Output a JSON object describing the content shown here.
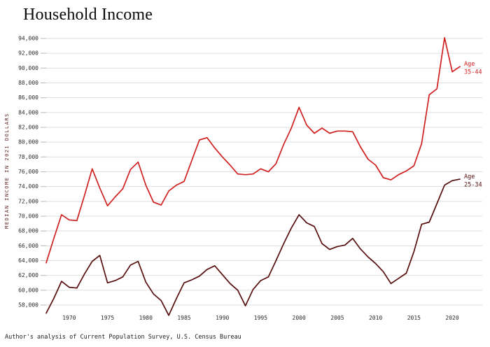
{
  "chart_data": {
    "type": "line",
    "title": "Household Income",
    "ylabel": "MEDIAN INCOME IN 2021 DOLLARS",
    "source": "Author's analysis of Current Population Survey, U.S. Census Bureau",
    "grid": true,
    "legend_position": "line-end-right",
    "ylim": [
      56000,
      95000
    ],
    "yticks": [
      58000,
      60000,
      62000,
      64000,
      66000,
      68000,
      70000,
      72000,
      74000,
      76000,
      78000,
      80000,
      82000,
      84000,
      86000,
      88000,
      90000,
      92000,
      94000
    ],
    "xticks": [
      1970,
      1975,
      1980,
      1985,
      1990,
      1995,
      2000,
      2005,
      2010,
      2015,
      2020
    ],
    "years": [
      1967,
      1968,
      1969,
      1970,
      1971,
      1972,
      1973,
      1974,
      1975,
      1976,
      1977,
      1978,
      1979,
      1980,
      1981,
      1982,
      1983,
      1984,
      1985,
      1986,
      1987,
      1988,
      1989,
      1990,
      1991,
      1992,
      1993,
      1994,
      1995,
      1996,
      1997,
      1998,
      1999,
      2000,
      2001,
      2002,
      2003,
      2004,
      2005,
      2006,
      2007,
      2008,
      2009,
      2010,
      2011,
      2012,
      2013,
      2014,
      2015,
      2016,
      2017,
      2018,
      2019,
      2020,
      2021
    ],
    "series": [
      {
        "id": "age-35-44",
        "name": "Age 35-44",
        "label_lines": [
          "Age",
          "35-44"
        ],
        "color": "#cf2020",
        "values": [
          63700,
          67000,
          70200,
          69500,
          69400,
          72800,
          76400,
          73800,
          71400,
          72600,
          73700,
          76300,
          77300,
          74200,
          71900,
          71500,
          73400,
          74200,
          74700,
          77500,
          80300,
          80600,
          79200,
          78000,
          76900,
          75700,
          75600,
          75700,
          76400,
          76000,
          77100,
          79700,
          81900,
          84700,
          82300,
          81200,
          81900,
          81200,
          81500,
          81500,
          81400,
          79400,
          77700,
          76900,
          75200,
          74900,
          75600,
          76100,
          76800,
          79800,
          86400,
          87200,
          94100,
          89500,
          90200
        ]
      },
      {
        "id": "age-25-34",
        "name": "Age 25-34",
        "label_lines": [
          "Age",
          "25-34"
        ],
        "color": "#570e0e",
        "values": [
          56900,
          58900,
          61200,
          60400,
          60300,
          62200,
          63900,
          64700,
          61000,
          61300,
          61800,
          63400,
          63900,
          61100,
          59500,
          58600,
          56600,
          58900,
          61000,
          61400,
          61900,
          62800,
          63300,
          62100,
          60900,
          60000,
          57900,
          60100,
          61300,
          61800,
          64000,
          66300,
          68400,
          70200,
          69100,
          68600,
          66300,
          65500,
          65900,
          66100,
          67000,
          65600,
          64500,
          63600,
          62500,
          60900,
          61600,
          62300,
          65200,
          68900,
          69200,
          71700,
          74200,
          74800,
          75000
        ]
      }
    ]
  }
}
